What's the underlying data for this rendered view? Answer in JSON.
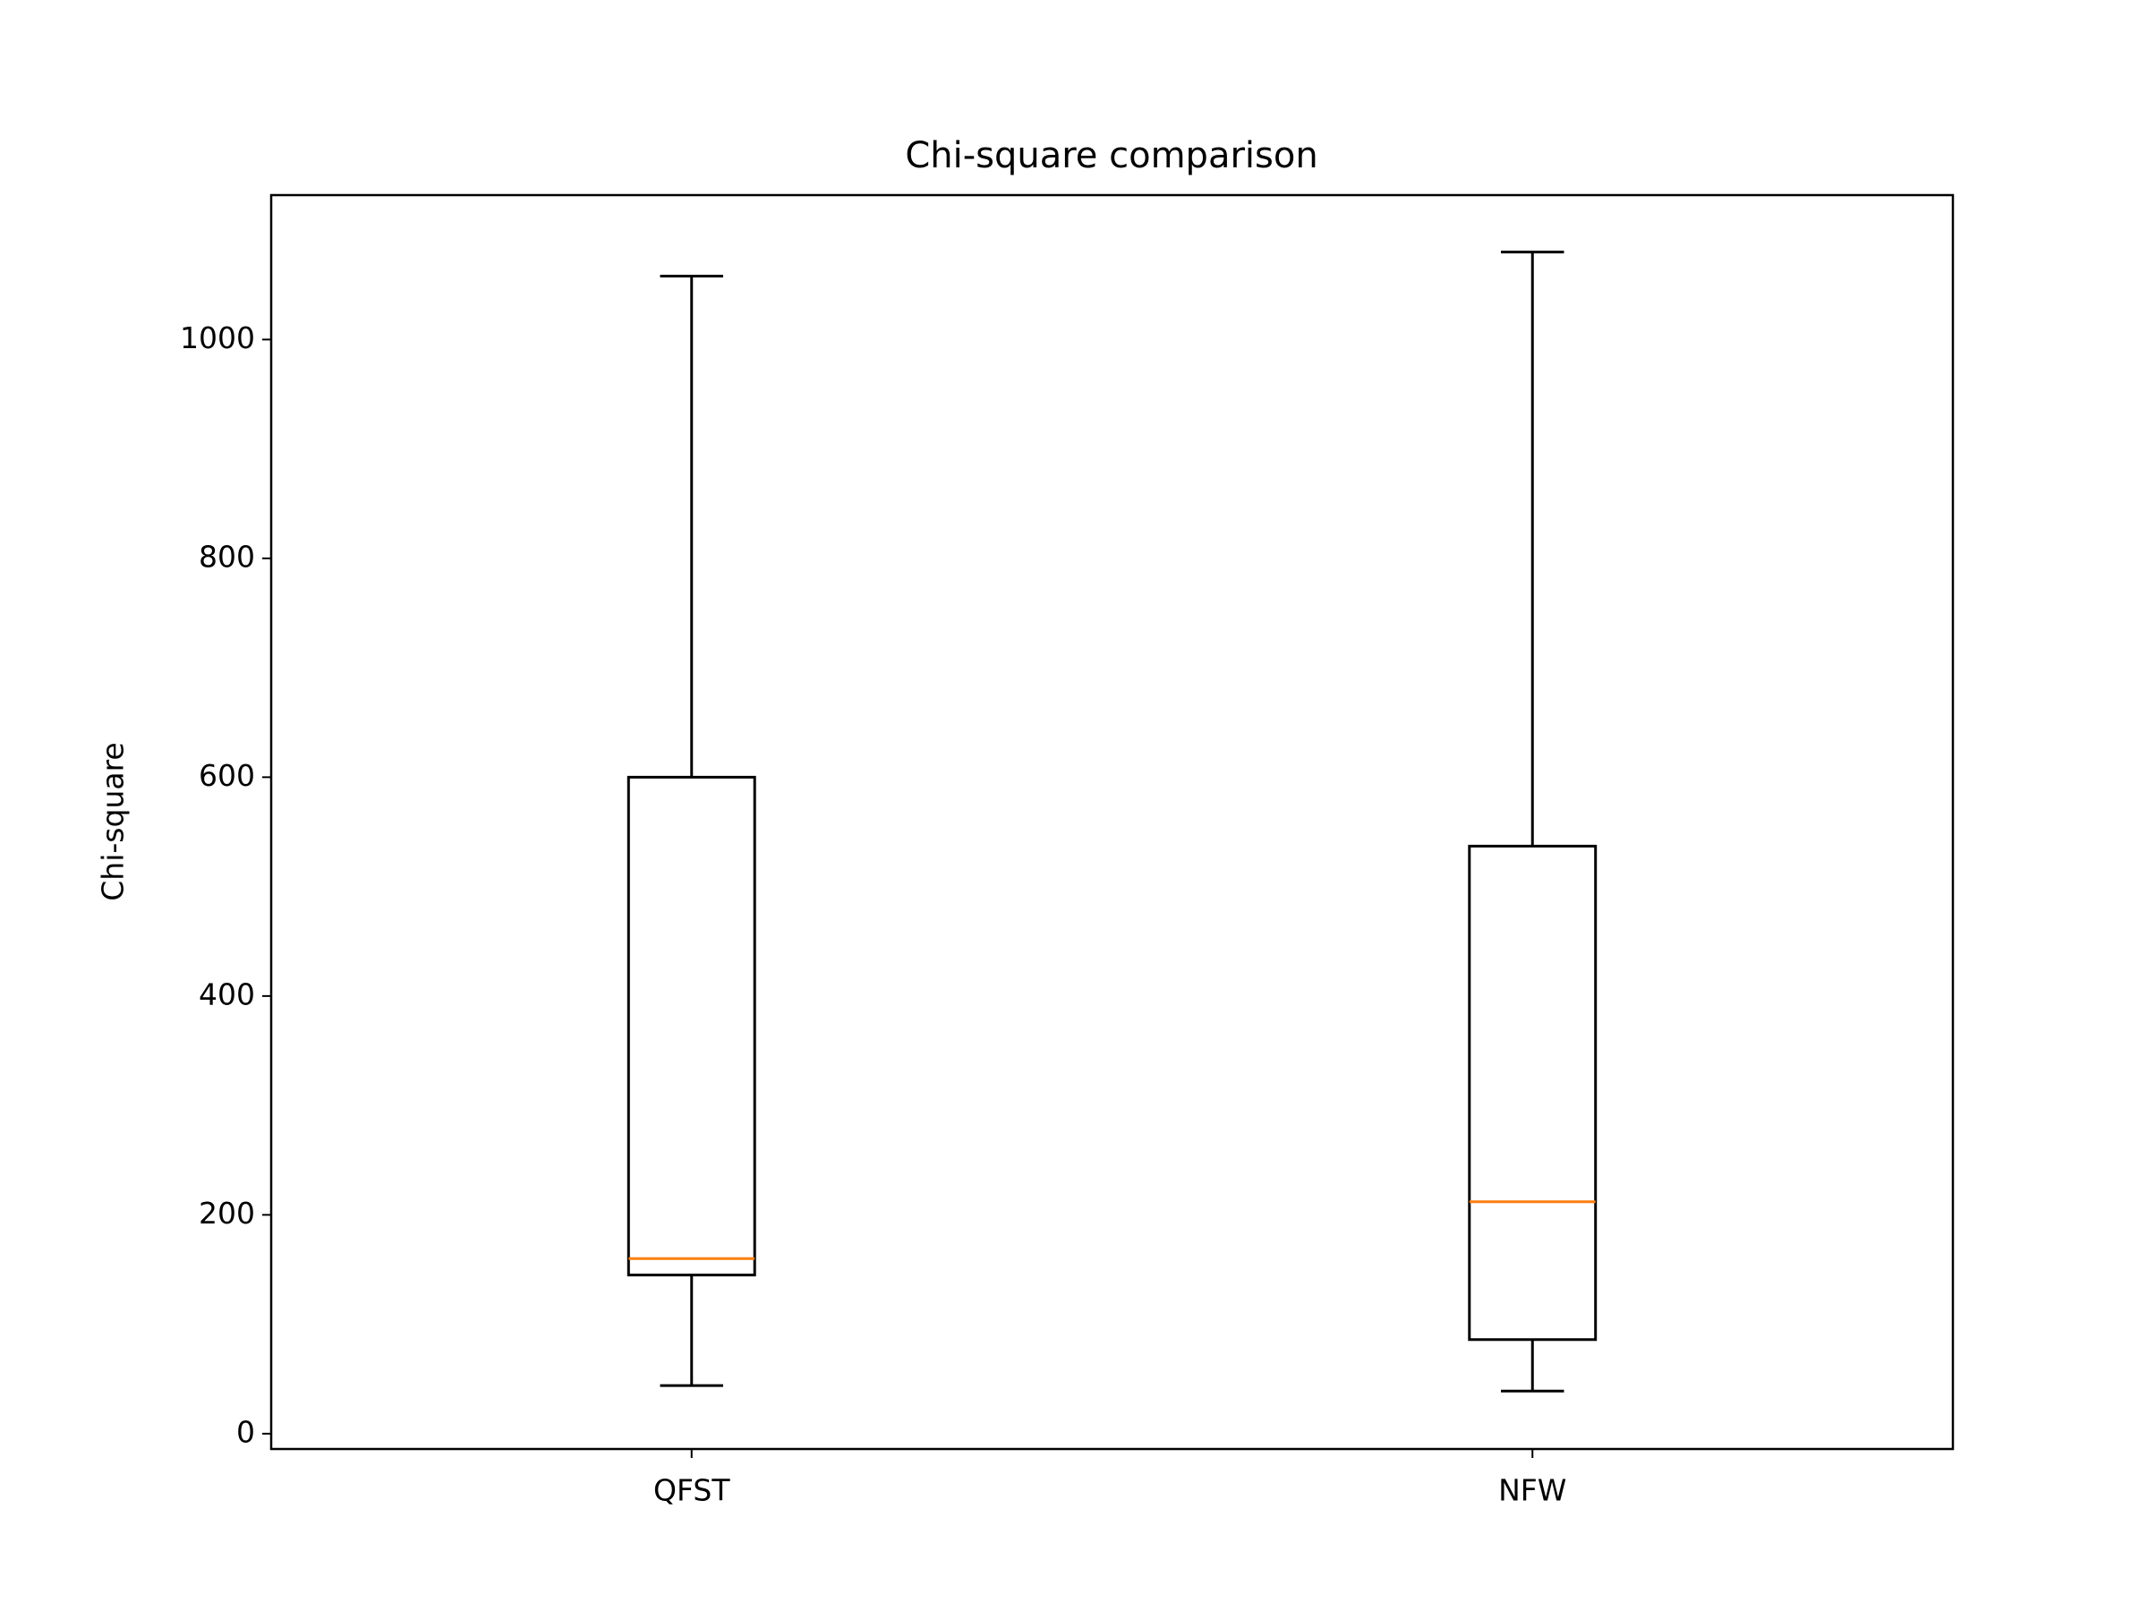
{
  "chart_data": {
    "type": "box",
    "title": "Chi-square comparison",
    "y_label": "Chi-square",
    "categories": [
      "QFST",
      "NFW"
    ],
    "boxes": [
      {
        "whislo": 44,
        "q1": 145,
        "med": 160,
        "q3": 600,
        "whishi": 1058
      },
      {
        "whislo": 39,
        "q1": 86,
        "med": 212,
        "q3": 537,
        "whishi": 1080
      }
    ],
    "box_color": "#000000",
    "median_color": "#ff7f0e",
    "ylim": [
      -14,
      1132
    ],
    "yticks": [
      0,
      200,
      400,
      600,
      800,
      1000
    ]
  }
}
